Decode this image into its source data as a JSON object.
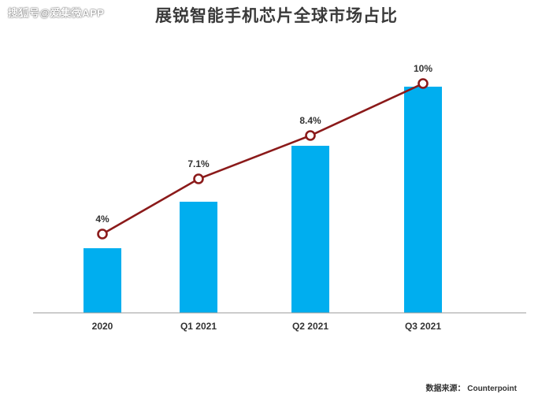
{
  "watermark": "搜狐号@爱集微APP",
  "source_label": "数据来源：",
  "source_name": "Counterpoint",
  "colors": {
    "bar": "#00AEEF",
    "line": "#8B1A1A",
    "axis": "#999999",
    "text": "#333333"
  },
  "chart_data": {
    "type": "bar",
    "title": "展锐智能手机芯片全球市场占比",
    "categories": [
      "2020",
      "Q1 2021",
      "Q2 2021",
      "Q3 2021"
    ],
    "bar_values": [
      4,
      7.1,
      8.4,
      10
    ],
    "series": [
      {
        "type": "line",
        "values": [
          4,
          7.1,
          8.4,
          10
        ],
        "data_labels": [
          "4%",
          "7.1%",
          "8.4%",
          "10%"
        ]
      }
    ],
    "xlabel": "",
    "ylabel": "",
    "grid": false,
    "legend": "none"
  }
}
